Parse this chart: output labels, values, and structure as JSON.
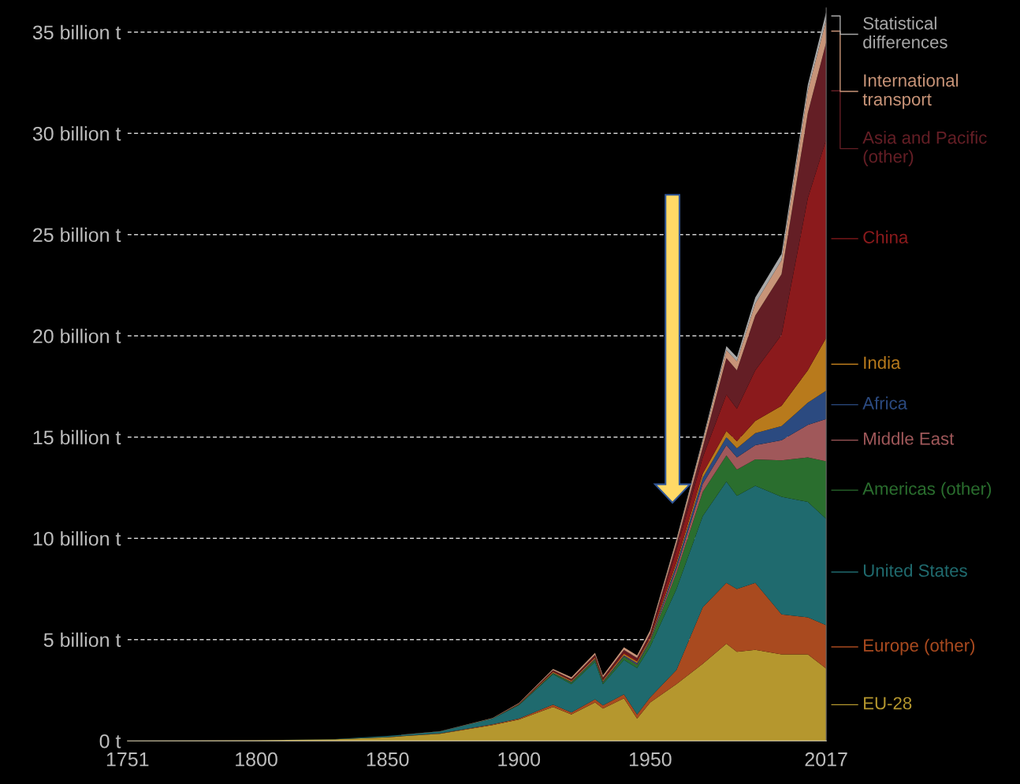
{
  "chart_data": {
    "type": "area",
    "stacked": true,
    "x": [
      1751,
      1800,
      1830,
      1850,
      1870,
      1890,
      1900,
      1913,
      1920,
      1929,
      1932,
      1940,
      1945,
      1950,
      1960,
      1970,
      1979,
      1983,
      1990,
      2000,
      2010,
      2017
    ],
    "series": [
      {
        "name": "EU-28",
        "color": "#b5972e",
        "values": [
          0.01,
          0.03,
          0.08,
          0.18,
          0.35,
          0.78,
          1.05,
          1.67,
          1.3,
          1.9,
          1.6,
          2.1,
          1.1,
          1.9,
          2.8,
          3.8,
          4.8,
          4.4,
          4.5,
          4.27,
          4.27,
          3.57
        ]
      },
      {
        "name": "Europe (other)",
        "color": "#a94a1f",
        "values": [
          0,
          0,
          0,
          0.01,
          0.02,
          0.04,
          0.05,
          0.12,
          0.1,
          0.15,
          0.15,
          0.2,
          0.2,
          0.25,
          0.7,
          2.8,
          3.0,
          3.1,
          3.3,
          1.98,
          1.83,
          2.14
        ]
      },
      {
        "name": "United States",
        "color": "#1f6a6e",
        "values": [
          0,
          0,
          0.01,
          0.05,
          0.1,
          0.28,
          0.66,
          1.5,
          1.4,
          1.85,
          1.05,
          1.7,
          2.3,
          2.5,
          4.0,
          4.5,
          5.0,
          4.6,
          4.8,
          5.8,
          5.7,
          5.25
        ]
      },
      {
        "name": "Americas (other)",
        "color": "#2a6e2e",
        "values": [
          0,
          0,
          0,
          0,
          0,
          0.01,
          0.02,
          0.05,
          0.08,
          0.1,
          0.08,
          0.15,
          0.15,
          0.25,
          0.8,
          1.2,
          1.3,
          1.3,
          1.3,
          1.8,
          2.2,
          2.84
        ]
      },
      {
        "name": "Middle East",
        "color": "#a0585a",
        "values": [
          0,
          0,
          0,
          0,
          0,
          0,
          0,
          0,
          0.01,
          0.02,
          0.02,
          0.02,
          0.03,
          0.05,
          0.2,
          0.4,
          0.5,
          0.6,
          0.7,
          1.0,
          1.6,
          2.1
        ]
      },
      {
        "name": "Africa",
        "color": "#2b4a80",
        "values": [
          0,
          0,
          0,
          0,
          0,
          0,
          0.01,
          0.02,
          0.03,
          0.04,
          0.04,
          0.05,
          0.06,
          0.05,
          0.2,
          0.3,
          0.4,
          0.45,
          0.6,
          0.7,
          1.1,
          1.4
        ]
      },
      {
        "name": "India",
        "color": "#b87a1c",
        "values": [
          0,
          0,
          0,
          0,
          0,
          0,
          0.02,
          0.05,
          0.05,
          0.06,
          0.06,
          0.08,
          0.08,
          0.08,
          0.12,
          0.2,
          0.3,
          0.35,
          0.6,
          1.0,
          1.6,
          2.6
        ]
      },
      {
        "name": "China",
        "color": "#8b1a1c",
        "values": [
          0,
          0,
          0,
          0,
          0,
          0,
          0.01,
          0.03,
          0.03,
          0.05,
          0.05,
          0.08,
          0.08,
          0.08,
          0.6,
          0.8,
          1.8,
          1.6,
          2.5,
          3.5,
          8.5,
          9.8
        ]
      },
      {
        "name": "Asia and Pacific\n(other)",
        "color": "#641e25",
        "values": [
          0,
          0,
          0,
          0,
          0,
          0,
          0.02,
          0.05,
          0.06,
          0.08,
          0.08,
          0.12,
          0.1,
          0.15,
          0.3,
          0.5,
          1.8,
          1.9,
          2.7,
          3.0,
          4.2,
          4.8
        ]
      },
      {
        "name": "International\ntransport",
        "color": "#c89478",
        "values": [
          0,
          0,
          0,
          0,
          0.01,
          0.02,
          0.03,
          0.06,
          0.08,
          0.1,
          0.1,
          0.12,
          0.12,
          0.15,
          0.2,
          0.3,
          0.4,
          0.45,
          0.6,
          0.7,
          1.1,
          1.1
        ]
      },
      {
        "name": "Statistical\ndifferences",
        "color": "#a8a8a8",
        "values": [
          0,
          0,
          0,
          0,
          0,
          0,
          0,
          0,
          0,
          0,
          0,
          0,
          0,
          0.02,
          0.05,
          0.1,
          0.2,
          0.2,
          0.3,
          0.3,
          0.3,
          0.4
        ]
      }
    ],
    "xlim": [
      1751,
      2017
    ],
    "xticks": [
      1751,
      1800,
      1850,
      1900,
      1950,
      2017
    ],
    "ylim": [
      0,
      36.2
    ],
    "yticks": [
      {
        "value": 0,
        "label": "0 t"
      },
      {
        "value": 5,
        "label": "5 billion t"
      },
      {
        "value": 10,
        "label": "10 billion t"
      },
      {
        "value": 15,
        "label": "15 billion t"
      },
      {
        "value": 20,
        "label": "20 billion t"
      },
      {
        "value": 25,
        "label": "25 billion t"
      },
      {
        "value": 30,
        "label": "30 billion t"
      },
      {
        "value": 35,
        "label": "35 billion t"
      }
    ],
    "grid": "y",
    "line_style": "dashed",
    "legend": "right"
  }
}
